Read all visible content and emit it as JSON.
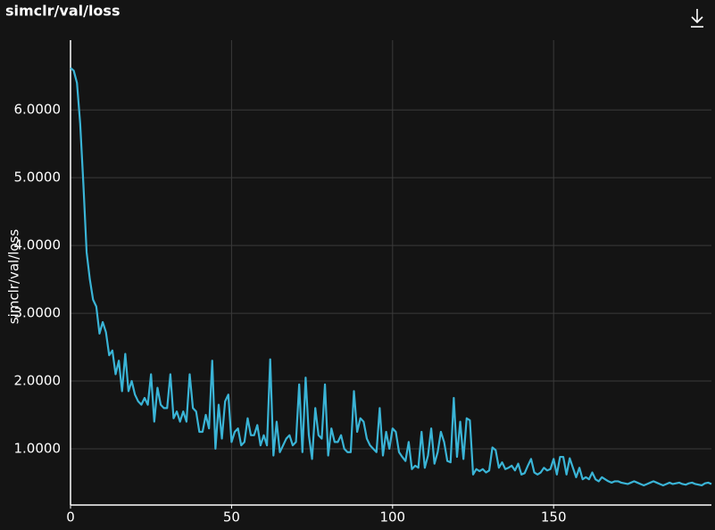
{
  "chart_data": {
    "type": "line",
    "title": "simclr/val/loss",
    "y_label": "simclr/val/loss",
    "x": [
      0,
      1,
      2,
      3,
      4,
      5,
      6,
      7,
      8,
      9,
      10,
      11,
      12,
      13,
      14,
      15,
      16,
      17,
      18,
      19,
      20,
      21,
      22,
      23,
      24,
      25,
      26,
      27,
      28,
      29,
      30,
      31,
      32,
      33,
      34,
      35,
      36,
      37,
      38,
      39,
      40,
      41,
      42,
      43,
      44,
      45,
      46,
      47,
      48,
      49,
      50,
      51,
      52,
      53,
      54,
      55,
      56,
      57,
      58,
      59,
      60,
      61,
      62,
      63,
      64,
      65,
      66,
      67,
      68,
      69,
      70,
      71,
      72,
      73,
      74,
      75,
      76,
      77,
      78,
      79,
      80,
      81,
      82,
      83,
      84,
      85,
      86,
      87,
      88,
      89,
      90,
      91,
      92,
      93,
      94,
      95,
      96,
      97,
      98,
      99,
      100,
      101,
      102,
      103,
      104,
      105,
      106,
      107,
      108,
      109,
      110,
      111,
      112,
      113,
      114,
      115,
      116,
      117,
      118,
      119,
      120,
      121,
      122,
      123,
      124,
      125,
      126,
      127,
      128,
      129,
      130,
      131,
      132,
      133,
      134,
      135,
      136,
      137,
      138,
      139,
      140,
      141,
      142,
      143,
      144,
      145,
      146,
      147,
      148,
      149,
      150,
      151,
      152,
      153,
      154,
      155,
      156,
      157,
      158,
      159,
      160,
      161,
      162,
      163,
      164,
      165,
      166,
      167,
      168,
      169,
      170,
      171,
      172,
      173,
      174,
      175,
      176,
      177,
      178,
      179,
      180,
      181,
      182,
      183,
      184,
      185,
      186,
      187,
      188,
      189,
      190,
      191,
      192,
      193,
      194,
      195,
      196,
      197,
      198,
      199
    ],
    "series": [
      {
        "name": "simclr/val/loss",
        "color": "#3ab4d6",
        "values": [
          6.62,
          6.58,
          6.4,
          5.8,
          4.9,
          3.9,
          3.5,
          3.2,
          3.1,
          2.7,
          2.87,
          2.72,
          2.38,
          2.45,
          2.1,
          2.3,
          1.85,
          2.4,
          1.85,
          2.0,
          1.8,
          1.7,
          1.65,
          1.75,
          1.65,
          2.1,
          1.4,
          1.9,
          1.65,
          1.6,
          1.6,
          2.1,
          1.45,
          1.55,
          1.4,
          1.55,
          1.4,
          2.1,
          1.6,
          1.55,
          1.25,
          1.25,
          1.5,
          1.3,
          2.3,
          1.0,
          1.65,
          1.15,
          1.7,
          1.8,
          1.1,
          1.25,
          1.3,
          1.05,
          1.1,
          1.45,
          1.2,
          1.2,
          1.35,
          1.05,
          1.2,
          1.05,
          2.32,
          0.9,
          1.4,
          0.95,
          1.05,
          1.15,
          1.2,
          1.05,
          1.1,
          1.95,
          0.95,
          2.05,
          1.2,
          0.85,
          1.6,
          1.2,
          1.15,
          1.95,
          0.9,
          1.3,
          1.1,
          1.1,
          1.2,
          1.0,
          0.95,
          0.95,
          1.85,
          1.25,
          1.45,
          1.4,
          1.15,
          1.05,
          1.0,
          0.95,
          1.6,
          0.9,
          1.25,
          1.0,
          1.3,
          1.25,
          0.95,
          0.88,
          0.82,
          1.1,
          0.7,
          0.75,
          0.72,
          1.25,
          0.72,
          0.9,
          1.3,
          0.78,
          0.95,
          1.25,
          1.1,
          0.82,
          0.8,
          1.75,
          0.88,
          1.4,
          0.85,
          1.45,
          1.42,
          0.62,
          0.7,
          0.67,
          0.7,
          0.65,
          0.68,
          1.02,
          0.98,
          0.72,
          0.8,
          0.7,
          0.72,
          0.75,
          0.68,
          0.78,
          0.62,
          0.64,
          0.75,
          0.85,
          0.65,
          0.62,
          0.65,
          0.72,
          0.68,
          0.7,
          0.85,
          0.62,
          0.88,
          0.88,
          0.62,
          0.86,
          0.72,
          0.58,
          0.72,
          0.55,
          0.58,
          0.55,
          0.65,
          0.55,
          0.52,
          0.58,
          0.55,
          0.52,
          0.5,
          0.52,
          0.52,
          0.5,
          0.49,
          0.48,
          0.5,
          0.52,
          0.5,
          0.48,
          0.46,
          0.48,
          0.5,
          0.52,
          0.5,
          0.48,
          0.46,
          0.48,
          0.5,
          0.48,
          0.49,
          0.5,
          0.48,
          0.47,
          0.49,
          0.5,
          0.48,
          0.47,
          0.46,
          0.49,
          0.5,
          0.48
        ]
      }
    ],
    "xlim": [
      0,
      199
    ],
    "xticks": [
      0,
      50,
      100,
      150
    ],
    "ylim": [
      0.17,
      7.03
    ],
    "yticks": [
      {
        "value": 1,
        "label": "1.0000"
      },
      {
        "value": 2,
        "label": "2.0000"
      },
      {
        "value": 3,
        "label": "3.0000"
      },
      {
        "value": 4,
        "label": "4.0000"
      },
      {
        "value": 5,
        "label": "5.0000"
      },
      {
        "value": 6,
        "label": "6.0000"
      }
    ],
    "grid": true
  }
}
